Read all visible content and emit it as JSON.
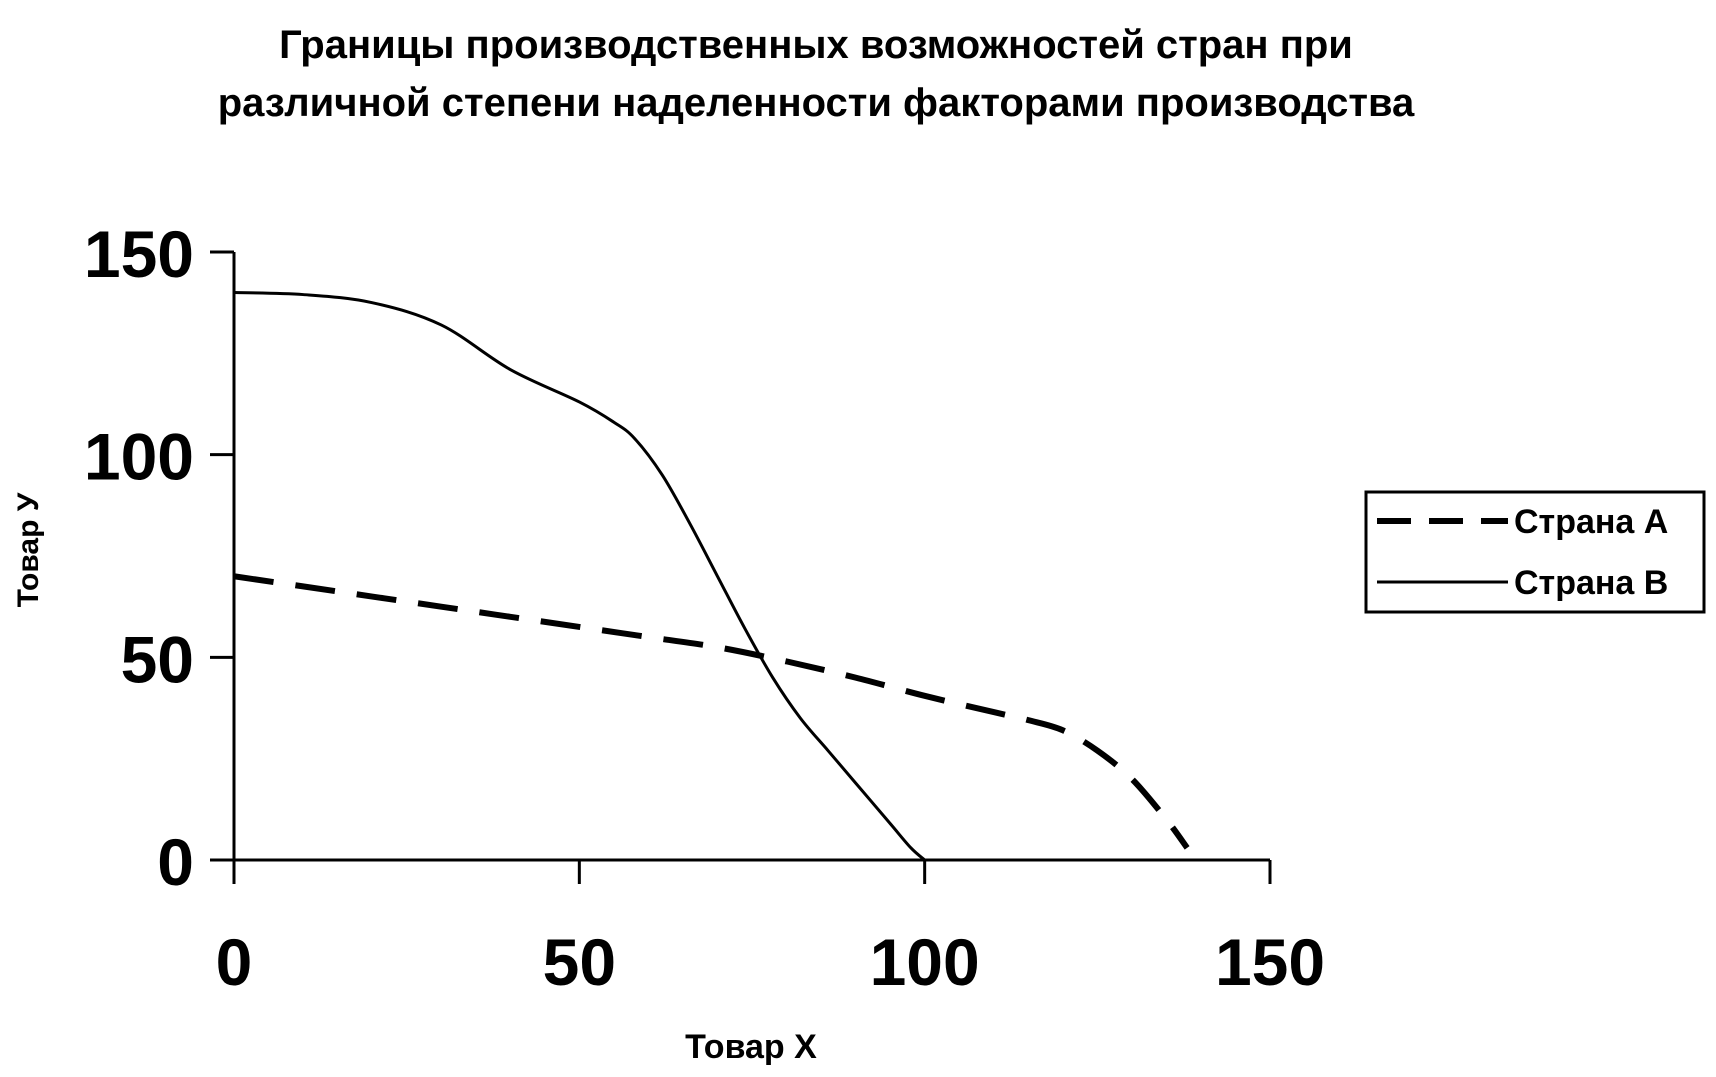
{
  "chart_data": {
    "type": "line",
    "title": "Границы производственных возможностей стран при различной степени наделенности факторами производства",
    "title_lines": [
      "Границы производственных возможностей стран при",
      "различной степени наделенности факторами производства"
    ],
    "xlabel": "Товар X",
    "ylabel": "Товар У",
    "xlim": [
      0,
      150
    ],
    "ylim": [
      0,
      150
    ],
    "x_ticks": [
      0,
      50,
      100,
      150
    ],
    "y_ticks": [
      0,
      50,
      100,
      150
    ],
    "x_tick_labels": [
      "0",
      "50",
      "100",
      "150"
    ],
    "y_tick_labels": [
      "0",
      "50",
      "100",
      "150"
    ],
    "grid": false,
    "legend_position": "right",
    "series": [
      {
        "name": "Страна А",
        "style": "dashed",
        "color": "#000000",
        "points": [
          [
            0,
            70
          ],
          [
            10,
            67.5
          ],
          [
            20,
            65
          ],
          [
            30,
            62.5
          ],
          [
            40,
            60
          ],
          [
            50,
            57.5
          ],
          [
            60,
            55
          ],
          [
            70,
            52.5
          ],
          [
            80,
            49
          ],
          [
            90,
            45
          ],
          [
            100,
            40.5
          ],
          [
            110,
            36.5
          ],
          [
            115,
            34.5
          ],
          [
            120,
            32
          ],
          [
            125,
            27
          ],
          [
            130,
            20
          ],
          [
            135,
            10
          ],
          [
            138,
            3
          ]
        ]
      },
      {
        "name": "Страна В",
        "style": "solid",
        "color": "#000000",
        "points": [
          [
            0,
            140
          ],
          [
            10,
            139.5
          ],
          [
            20,
            137.5
          ],
          [
            30,
            132
          ],
          [
            40,
            121
          ],
          [
            50,
            113
          ],
          [
            55,
            108
          ],
          [
            58,
            104
          ],
          [
            62,
            95
          ],
          [
            66,
            83
          ],
          [
            70,
            70
          ],
          [
            74,
            57
          ],
          [
            78,
            45
          ],
          [
            82,
            35
          ],
          [
            86,
            27
          ],
          [
            90,
            19
          ],
          [
            95,
            9
          ],
          [
            98,
            3
          ],
          [
            100,
            0
          ]
        ]
      }
    ]
  }
}
